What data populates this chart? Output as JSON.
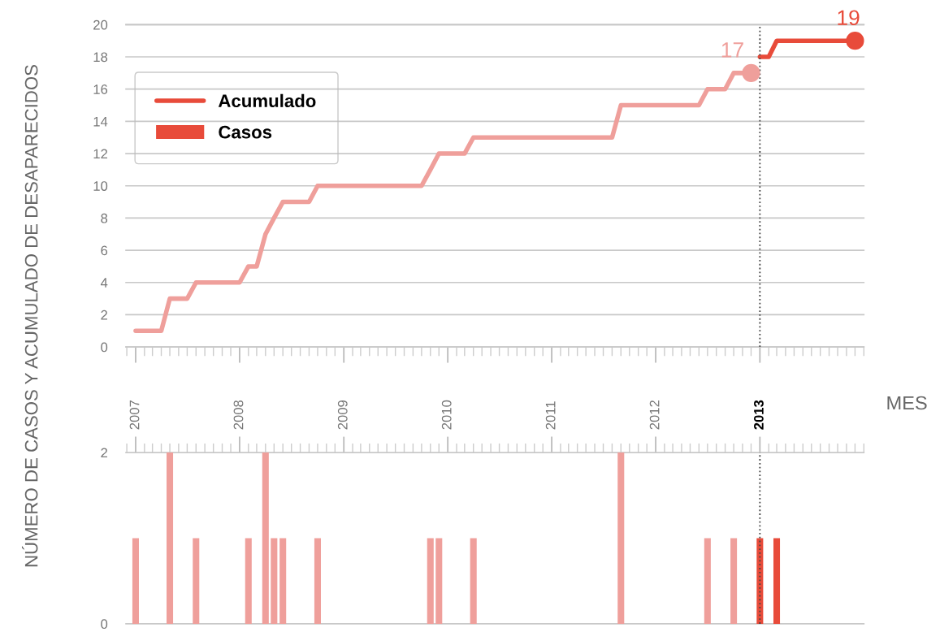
{
  "chart_data": [
    {
      "type": "line",
      "ylabel": "NÚMERO DE CASOS Y ACUMULADO DE DESAPARECIDOS",
      "xlim": [
        "2006-11-28",
        "2014-01-01"
      ],
      "ylim": [
        0,
        20
      ],
      "yticks": [
        0,
        2,
        4,
        6,
        8,
        10,
        12,
        14,
        16,
        18,
        20
      ],
      "grid": "y",
      "legend": "top left",
      "tick_labels": "y",
      "marker": "none",
      "line_style": "solid",
      "xticks": [
        {
          "value": "2007-01",
          "label": null
        },
        {
          "value": "2008-01",
          "label": null
        },
        {
          "value": "2009-01",
          "label": null
        },
        {
          "value": "2010-01",
          "label": null
        },
        {
          "value": "2011-01",
          "label": null
        },
        {
          "value": "2012-01",
          "label": null
        },
        {
          "value": "2013-01",
          "label": null
        }
      ],
      "series": [
        {
          "color": "#ef9f9b",
          "x": [
            "2007-01",
            "2007-02",
            "2007-03",
            "2007-04",
            "2007-05",
            "2007-06",
            "2007-07",
            "2007-08",
            "2007-09",
            "2007-10",
            "2007-11",
            "2007-12",
            "2008-01",
            "2008-02",
            "2008-03",
            "2008-04",
            "2008-05",
            "2008-06",
            "2008-07",
            "2008-08",
            "2008-09",
            "2008-10",
            "2008-11",
            "2008-12",
            "2009-01",
            "2009-02",
            "2009-03",
            "2009-04",
            "2009-05",
            "2009-06",
            "2009-07",
            "2009-08",
            "2009-09",
            "2009-10",
            "2009-11",
            "2009-12",
            "2010-01",
            "2010-02",
            "2010-03",
            "2010-04",
            "2010-05",
            "2010-06",
            "2010-07",
            "2010-08",
            "2010-09",
            "2010-10",
            "2010-11",
            "2010-12",
            "2011-01",
            "2011-02",
            "2011-03",
            "2011-04",
            "2011-05",
            "2011-06",
            "2011-07",
            "2011-08",
            "2011-09",
            "2011-10",
            "2011-11",
            "2011-12",
            "2012-01",
            "2012-02",
            "2012-03",
            "2012-04",
            "2012-05",
            "2012-06",
            "2012-07",
            "2012-08",
            "2012-09",
            "2012-10",
            "2012-11",
            "2012-12"
          ],
          "values": [
            1,
            1,
            1,
            1,
            3,
            3,
            3,
            4,
            4,
            4,
            4,
            4,
            4,
            5,
            5,
            7,
            8,
            9,
            9,
            9,
            9,
            10,
            10,
            10,
            10,
            10,
            10,
            10,
            10,
            10,
            10,
            10,
            10,
            10,
            11,
            12,
            12,
            12,
            12,
            13,
            13,
            13,
            13,
            13,
            13,
            13,
            13,
            13,
            13,
            13,
            13,
            13,
            13,
            13,
            13,
            13,
            15,
            15,
            15,
            15,
            15,
            15,
            15,
            15,
            15,
            15,
            16,
            16,
            16,
            17,
            17,
            17
          ]
        },
        {
          "name": "Acumulado",
          "color": "#e84b3a",
          "x": [
            "2013-01",
            "2013-02",
            "2013-03",
            "2013-04",
            "2013-05",
            "2013-06",
            "2013-07",
            "2013-08",
            "2013-09",
            "2013-10",
            "2013-11",
            "2013-12"
          ],
          "values": [
            18,
            18,
            19,
            19,
            19,
            19,
            19,
            19,
            19,
            19,
            19,
            19
          ]
        }
      ],
      "annotations": [
        {
          "text": "17",
          "x": "2012-12",
          "y": 17
        },
        {
          "text": "19",
          "x": "2013-12",
          "y": 19
        }
      ],
      "ref_lines": [
        {
          "axis": "x",
          "value": "2013-01",
          "color": "#444444",
          "line_style": "dotted"
        }
      ]
    },
    {
      "type": "bar",
      "xlabel": "MES",
      "xlim": [
        "2006-11-28",
        "2014-01-01"
      ],
      "ylim": [
        0,
        2
      ],
      "yticks": [
        0,
        2
      ],
      "xticks": [
        {
          "value": "2007-01",
          "label": "2007"
        },
        {
          "value": "2008-01",
          "label": "2008"
        },
        {
          "value": "2009-01",
          "label": "2009"
        },
        {
          "value": "2010-01",
          "label": "2010"
        },
        {
          "value": "2011-01",
          "label": "2011"
        },
        {
          "value": "2012-01",
          "label": "2012"
        },
        {
          "value": "2013-01",
          "label": "2013"
        }
      ],
      "series": [
        {
          "color": "#ef9f9b",
          "x": [
            "2007-01",
            "2007-05",
            "2007-08",
            "2008-02",
            "2008-04",
            "2008-05",
            "2008-06",
            "2008-10",
            "2009-11",
            "2009-12",
            "2010-04",
            "2011-09",
            "2012-07",
            "2012-10"
          ],
          "values": [
            1,
            2,
            1,
            1,
            2,
            1,
            1,
            1,
            1,
            1,
            1,
            2,
            1,
            1
          ]
        },
        {
          "name": "Casos",
          "color": "#e84b3a",
          "x": [
            "2013-01",
            "2013-03"
          ],
          "values": [
            1,
            1
          ]
        }
      ],
      "ref_lines": [
        {
          "axis": "x",
          "value": "2013-01",
          "color": "#444444",
          "line_style": "dotted"
        }
      ]
    }
  ]
}
